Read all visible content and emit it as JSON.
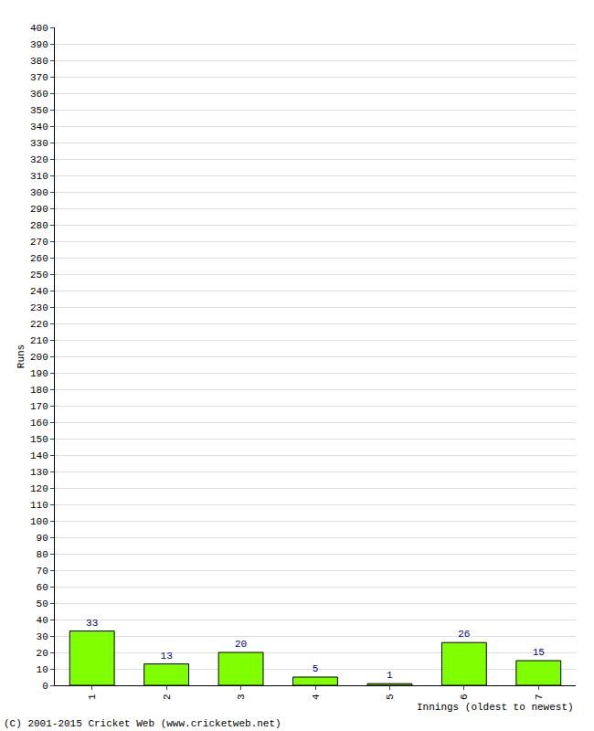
{
  "chart_data": {
    "type": "bar",
    "xlabel": "Innings (oldest to newest)",
    "ylabel": "Runs",
    "categories": [
      "1",
      "2",
      "3",
      "4",
      "5",
      "6",
      "7"
    ],
    "values": [
      33,
      13,
      20,
      5,
      1,
      26,
      15
    ],
    "color": "#80ff00",
    "data_labels": true,
    "ylim": [
      0,
      400
    ],
    "yticks": [
      0,
      10,
      20,
      30,
      40,
      50,
      60,
      70,
      80,
      90,
      100,
      110,
      120,
      130,
      140,
      150,
      160,
      170,
      180,
      190,
      200,
      210,
      220,
      230,
      240,
      250,
      260,
      270,
      280,
      290,
      300,
      310,
      320,
      330,
      340,
      350,
      360,
      370,
      380,
      390,
      400
    ],
    "grid": true,
    "annotations": [
      "(C) 2001-2015 Cricket Web (www.cricketweb.net)"
    ]
  }
}
